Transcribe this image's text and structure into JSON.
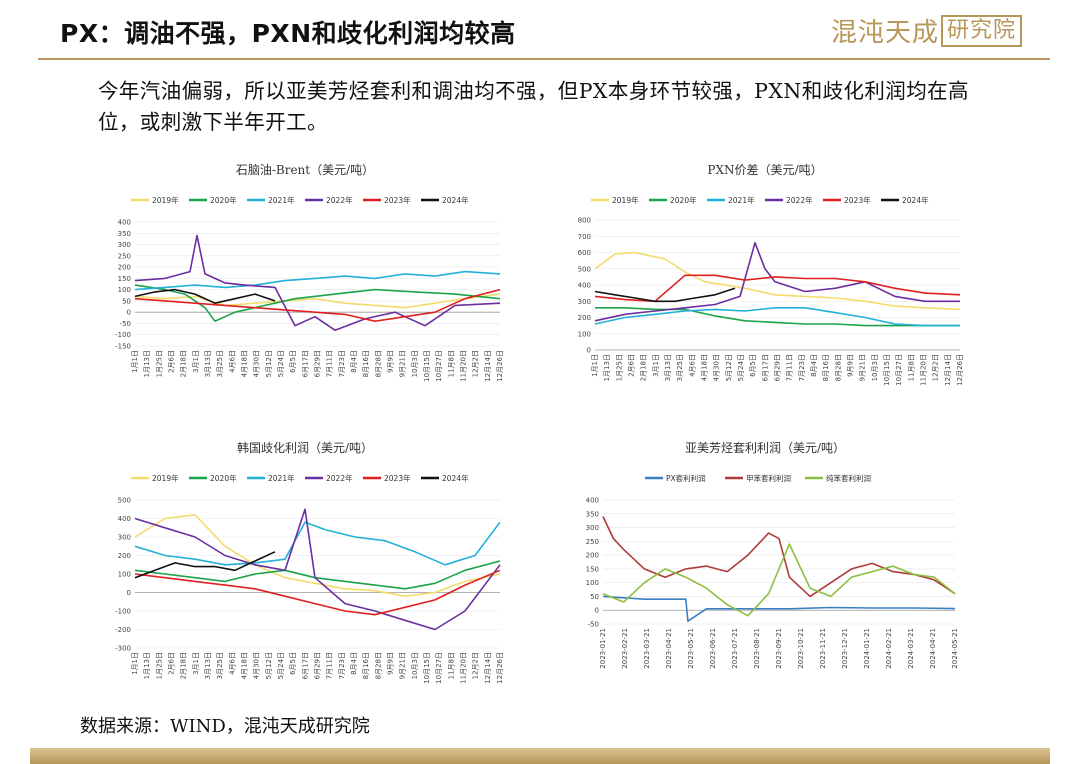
{
  "header": {
    "title": "PX：调油不强，PXN和歧化利润均较高",
    "logo_text": "混沌天成",
    "logo_box": "研究院"
  },
  "summary": "今年汽油偏弱，所以亚美芳烃套利和调油均不强，但PX本身环节较强，PXN和歧化利润均在高位，或刺激下半年开工。",
  "source": "数据来源：WIND，混沌天成研究院",
  "colors": {
    "2019年": "#f3dc6b",
    "2020年": "#1aa34a",
    "2021年": "#22b1d8",
    "2022年": "#6a2fa0",
    "2023年": "#e02020",
    "2024年": "#111111",
    "PX套利利润": "#3a7fc1",
    "甲苯套利利润": "#b03a3a",
    "纯苯套利利润": "#8cbf3f",
    "accent": "#b8975a"
  },
  "chart_data": [
    {
      "id": "naphtha",
      "type": "line",
      "title": "石脑油-Brent（美元/吨）",
      "ylim": [
        -150,
        400
      ],
      "yticks": [
        400,
        350,
        300,
        250,
        200,
        150,
        100,
        50,
        0,
        -50,
        -100,
        -150
      ],
      "xticks": [
        "1月1日",
        "1月13日",
        "1月25日",
        "2月6日",
        "2月18日",
        "3月1日",
        "3月13日",
        "3月25日",
        "4月6日",
        "4月18日",
        "4月30日",
        "5月12日",
        "5月24日",
        "6月5日",
        "6月17日",
        "6月29日",
        "7月11日",
        "7月23日",
        "8月4日",
        "8月16日",
        "8月28日",
        "9月9日",
        "9月21日",
        "10月3日",
        "10月15日",
        "10月27日",
        "11月8日",
        "11月20日",
        "12月2日",
        "12月14日",
        "12月26日"
      ],
      "xrange": [
        0,
        365
      ],
      "series": [
        {
          "name": "2019年",
          "x": [
            0,
            30,
            60,
            90,
            120,
            150,
            180,
            210,
            240,
            270,
            300,
            330,
            365
          ],
          "y": [
            70,
            60,
            70,
            30,
            40,
            50,
            60,
            40,
            30,
            20,
            40,
            60,
            80
          ]
        },
        {
          "name": "2020年",
          "x": [
            0,
            30,
            50,
            70,
            80,
            100,
            130,
            160,
            200,
            240,
            280,
            320,
            365
          ],
          "y": [
            120,
            100,
            80,
            20,
            -40,
            0,
            30,
            60,
            80,
            100,
            90,
            80,
            60
          ]
        },
        {
          "name": "2021年",
          "x": [
            0,
            30,
            60,
            90,
            120,
            150,
            180,
            210,
            240,
            270,
            300,
            330,
            365
          ],
          "y": [
            100,
            110,
            120,
            110,
            120,
            140,
            150,
            160,
            150,
            170,
            160,
            180,
            170
          ]
        },
        {
          "name": "2022年",
          "x": [
            0,
            30,
            55,
            62,
            70,
            90,
            110,
            140,
            160,
            180,
            200,
            230,
            260,
            290,
            320,
            365
          ],
          "y": [
            140,
            150,
            180,
            340,
            170,
            130,
            120,
            110,
            -60,
            -20,
            -80,
            -30,
            0,
            -60,
            30,
            40
          ]
        },
        {
          "name": "2023年",
          "x": [
            0,
            30,
            60,
            90,
            120,
            150,
            180,
            210,
            240,
            270,
            300,
            330,
            365
          ],
          "y": [
            60,
            50,
            40,
            30,
            20,
            10,
            0,
            -10,
            -40,
            -20,
            0,
            60,
            100
          ]
        },
        {
          "name": "2024年",
          "x": [
            0,
            20,
            40,
            60,
            80,
            100,
            120,
            140
          ],
          "y": [
            70,
            90,
            100,
            80,
            40,
            60,
            80,
            50
          ]
        }
      ]
    },
    {
      "id": "pxn",
      "type": "line",
      "title": "PXN价差（美元/吨）",
      "ylim": [
        0,
        800
      ],
      "yticks": [
        800,
        700,
        600,
        500,
        400,
        300,
        200,
        100,
        0
      ],
      "xticks": [
        "1月1日",
        "1月13日",
        "1月25日",
        "2月6日",
        "2月18日",
        "3月1日",
        "3月13日",
        "3月25日",
        "4月6日",
        "4月18日",
        "4月30日",
        "5月12日",
        "5月24日",
        "6月5日",
        "6月17日",
        "6月29日",
        "7月11日",
        "7月23日",
        "8月4日",
        "8月16日",
        "8月28日",
        "9月9日",
        "9月21日",
        "10月3日",
        "10月15日",
        "10月27日",
        "11月8日",
        "11月20日",
        "12月2日",
        "12月14日",
        "12月26日"
      ],
      "xrange": [
        0,
        365
      ],
      "series": [
        {
          "name": "2019年",
          "x": [
            0,
            20,
            40,
            70,
            90,
            110,
            130,
            150,
            180,
            210,
            240,
            270,
            300,
            330,
            365
          ],
          "y": [
            500,
            590,
            600,
            560,
            480,
            420,
            400,
            380,
            340,
            330,
            320,
            300,
            270,
            260,
            250
          ]
        },
        {
          "name": "2020年",
          "x": [
            0,
            30,
            60,
            90,
            120,
            150,
            180,
            210,
            240,
            270,
            300,
            330,
            365
          ],
          "y": [
            260,
            260,
            250,
            250,
            210,
            180,
            170,
            160,
            160,
            150,
            150,
            150,
            150
          ]
        },
        {
          "name": "2021年",
          "x": [
            0,
            30,
            60,
            90,
            120,
            150,
            180,
            210,
            240,
            270,
            300,
            330,
            365
          ],
          "y": [
            160,
            200,
            220,
            240,
            250,
            240,
            260,
            260,
            230,
            200,
            160,
            150,
            150
          ]
        },
        {
          "name": "2022年",
          "x": [
            0,
            30,
            60,
            90,
            120,
            145,
            160,
            170,
            180,
            210,
            240,
            270,
            300,
            330,
            365
          ],
          "y": [
            180,
            220,
            240,
            260,
            280,
            330,
            660,
            500,
            420,
            360,
            380,
            420,
            330,
            300,
            300
          ]
        },
        {
          "name": "2023年",
          "x": [
            0,
            30,
            60,
            90,
            120,
            150,
            180,
            210,
            240,
            270,
            300,
            330,
            365
          ],
          "y": [
            330,
            310,
            300,
            460,
            460,
            430,
            450,
            440,
            440,
            420,
            380,
            350,
            340
          ]
        },
        {
          "name": "2024年",
          "x": [
            0,
            20,
            40,
            60,
            80,
            100,
            120,
            140
          ],
          "y": [
            360,
            340,
            320,
            300,
            300,
            320,
            340,
            380
          ]
        }
      ]
    },
    {
      "id": "korea",
      "type": "line",
      "title": "韩国歧化利润（美元/吨）",
      "ylim": [
        -300,
        500
      ],
      "yticks": [
        500,
        400,
        300,
        200,
        100,
        0,
        -100,
        -200,
        -300
      ],
      "xticks": [
        "1月1日",
        "1月13日",
        "1月25日",
        "2月6日",
        "2月18日",
        "3月1日",
        "3月13日",
        "3月25日",
        "4月6日",
        "4月18日",
        "4月30日",
        "5月12日",
        "5月24日",
        "6月5日",
        "6月17日",
        "6月29日",
        "7月11日",
        "7月23日",
        "8月4日",
        "8月16日",
        "8月28日",
        "9月9日",
        "9月21日",
        "10月3日",
        "10月15日",
        "10月27日",
        "11月8日",
        "11月20日",
        "12月2日",
        "12月14日",
        "12月26日"
      ],
      "xrange": [
        0,
        365
      ],
      "series": [
        {
          "name": "2019年",
          "x": [
            0,
            30,
            60,
            90,
            120,
            150,
            180,
            210,
            240,
            270,
            300,
            330,
            365
          ],
          "y": [
            300,
            400,
            420,
            250,
            150,
            80,
            50,
            20,
            10,
            -20,
            0,
            60,
            100
          ]
        },
        {
          "name": "2020年",
          "x": [
            0,
            30,
            60,
            90,
            120,
            150,
            180,
            210,
            240,
            270,
            300,
            330,
            365
          ],
          "y": [
            120,
            100,
            80,
            60,
            100,
            120,
            80,
            60,
            40,
            20,
            50,
            120,
            170
          ]
        },
        {
          "name": "2021年",
          "x": [
            0,
            30,
            60,
            90,
            120,
            150,
            170,
            190,
            220,
            250,
            280,
            310,
            340,
            365
          ],
          "y": [
            250,
            200,
            180,
            150,
            160,
            180,
            380,
            340,
            300,
            280,
            220,
            150,
            200,
            380
          ]
        },
        {
          "name": "2022年",
          "x": [
            0,
            30,
            60,
            90,
            120,
            150,
            170,
            180,
            210,
            240,
            270,
            300,
            330,
            365
          ],
          "y": [
            400,
            350,
            300,
            200,
            150,
            120,
            450,
            80,
            -60,
            -100,
            -150,
            -200,
            -100,
            150
          ]
        },
        {
          "name": "2023年",
          "x": [
            0,
            30,
            60,
            90,
            120,
            150,
            180,
            210,
            240,
            270,
            300,
            330,
            365
          ],
          "y": [
            100,
            80,
            60,
            40,
            20,
            -20,
            -60,
            -100,
            -120,
            -80,
            -40,
            40,
            120
          ]
        },
        {
          "name": "2024年",
          "x": [
            0,
            20,
            40,
            60,
            80,
            100,
            120,
            140
          ],
          "y": [
            80,
            120,
            160,
            140,
            140,
            120,
            170,
            220
          ]
        }
      ]
    },
    {
      "id": "arb",
      "type": "line",
      "title": "亚美芳烃套利利润（美元/吨）",
      "ylim": [
        -50,
        400
      ],
      "yticks": [
        400,
        350,
        300,
        250,
        200,
        150,
        100,
        50,
        0,
        -50
      ],
      "xticks": [
        "2023-01-21",
        "2023-02-21",
        "2023-03-21",
        "2023-04-21",
        "2023-05-21",
        "2023-06-21",
        "2023-07-21",
        "2023-08-21",
        "2023-09-21",
        "2023-10-21",
        "2023-11-21",
        "2023-12-21",
        "2024-01-21",
        "2024-02-21",
        "2024-03-21",
        "2024-04-21",
        "2024-05-21"
      ],
      "xrange": [
        0,
        17
      ],
      "series": [
        {
          "name": "PX套利利润",
          "x": [
            0,
            1,
            2,
            3,
            4,
            4.1,
            5,
            7,
            9,
            11,
            13,
            15,
            17
          ],
          "y": [
            50,
            45,
            40,
            40,
            40,
            -40,
            5,
            5,
            5,
            10,
            8,
            8,
            6
          ]
        },
        {
          "name": "甲苯套利利润",
          "x": [
            0,
            0.5,
            1,
            2,
            3,
            4,
            5,
            6,
            7,
            8,
            8.5,
            9,
            10,
            11,
            12,
            13,
            14,
            15,
            16,
            17
          ],
          "y": [
            340,
            260,
            220,
            150,
            120,
            150,
            160,
            140,
            200,
            280,
            260,
            120,
            50,
            100,
            150,
            170,
            140,
            130,
            110,
            60
          ]
        },
        {
          "name": "纯苯套利利润",
          "x": [
            0,
            1,
            2,
            3,
            4,
            5,
            6,
            7,
            8,
            9,
            10,
            11,
            12,
            13,
            14,
            15,
            16,
            17
          ],
          "y": [
            60,
            30,
            100,
            150,
            120,
            80,
            20,
            -20,
            60,
            240,
            80,
            50,
            120,
            140,
            160,
            130,
            120,
            60
          ]
        }
      ]
    }
  ]
}
